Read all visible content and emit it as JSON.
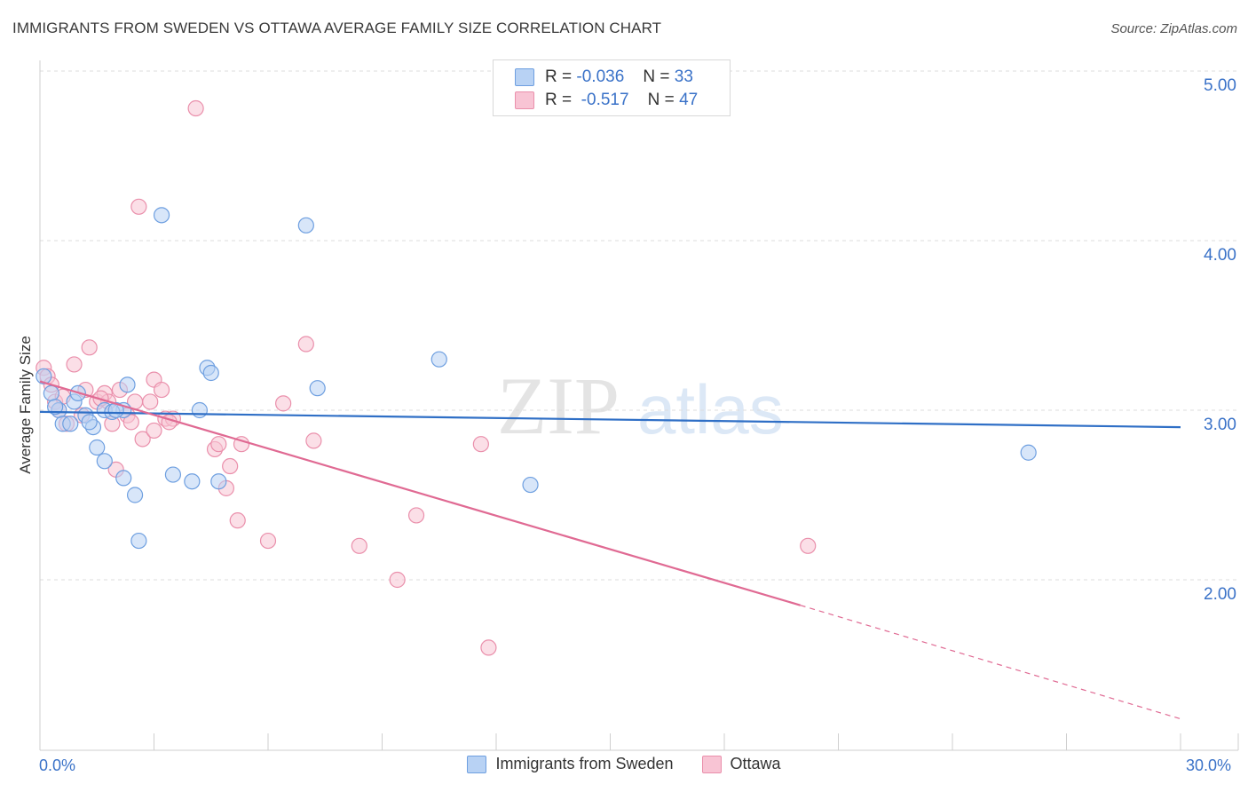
{
  "title": "IMMIGRANTS FROM SWEDEN VS OTTAWA AVERAGE FAMILY SIZE CORRELATION CHART",
  "source": "Source: ZipAtlas.com",
  "legend": {
    "r_label": "R =",
    "n_label": "N =",
    "sweden": {
      "r": "-0.036",
      "n": "33"
    },
    "ottawa": {
      "r": "-0.517",
      "n": "47"
    }
  },
  "colors": {
    "sweden_fill": "#b8d2f4",
    "sweden_stroke": "#6e9fe0",
    "sweden_line": "#2f6fc6",
    "ottawa_fill": "#f8c4d4",
    "ottawa_stroke": "#ea8fab",
    "ottawa_line": "#e06a93",
    "tick_label": "#3a72c8",
    "grid": "#dddddd"
  },
  "chart_data": {
    "type": "scatter",
    "ylabel": "Average Family Size",
    "xlim": [
      0,
      30
    ],
    "ylim": [
      1.0,
      5.1
    ],
    "x_tick_labels": [
      "0.0%",
      "30.0%"
    ],
    "y_ticks": [
      2.0,
      3.0,
      4.0,
      5.0
    ],
    "y_tick_labels": [
      "2.00",
      "3.00",
      "4.00",
      "5.00"
    ],
    "legend_placement": "top-center",
    "grid": "horizontal-dashed",
    "series": [
      {
        "name": "Immigrants from Sweden",
        "points": [
          [
            0.1,
            3.2
          ],
          [
            0.3,
            3.1
          ],
          [
            0.5,
            3.0
          ],
          [
            0.6,
            2.92
          ],
          [
            0.9,
            3.05
          ],
          [
            1.2,
            2.97
          ],
          [
            1.4,
            2.9
          ],
          [
            1.7,
            3.0
          ],
          [
            1.5,
            2.78
          ],
          [
            1.7,
            2.7
          ],
          [
            2.2,
            3.0
          ],
          [
            2.3,
            3.15
          ],
          [
            2.5,
            2.5
          ],
          [
            2.6,
            2.23
          ],
          [
            3.2,
            4.15
          ],
          [
            2.2,
            2.6
          ],
          [
            3.5,
            2.62
          ],
          [
            4.0,
            2.58
          ],
          [
            4.2,
            3.0
          ],
          [
            4.4,
            3.25
          ],
          [
            4.5,
            3.22
          ],
          [
            4.7,
            2.58
          ],
          [
            7.0,
            4.09
          ],
          [
            7.3,
            3.13
          ],
          [
            10.5,
            3.3
          ],
          [
            12.9,
            2.56
          ],
          [
            26.0,
            2.75
          ],
          [
            0.4,
            3.02
          ],
          [
            1.0,
            3.1
          ],
          [
            1.3,
            2.93
          ],
          [
            1.9,
            2.99
          ],
          [
            2.0,
            3.0
          ],
          [
            0.8,
            2.92
          ]
        ],
        "trend": [
          [
            0,
            2.99
          ],
          [
            30,
            2.9
          ]
        ]
      },
      {
        "name": "Ottawa",
        "points": [
          [
            0.1,
            3.25
          ],
          [
            0.2,
            3.2
          ],
          [
            0.4,
            3.05
          ],
          [
            0.5,
            3.0
          ],
          [
            0.7,
            2.92
          ],
          [
            0.9,
            3.27
          ],
          [
            1.2,
            3.12
          ],
          [
            1.3,
            3.37
          ],
          [
            1.5,
            3.05
          ],
          [
            1.7,
            3.1
          ],
          [
            1.9,
            2.92
          ],
          [
            2.0,
            2.65
          ],
          [
            2.1,
            3.12
          ],
          [
            2.3,
            2.97
          ],
          [
            2.5,
            3.05
          ],
          [
            2.6,
            4.2
          ],
          [
            2.7,
            2.83
          ],
          [
            3.0,
            2.88
          ],
          [
            3.0,
            3.18
          ],
          [
            3.2,
            3.12
          ],
          [
            3.3,
            2.95
          ],
          [
            3.5,
            2.95
          ],
          [
            4.1,
            4.78
          ],
          [
            4.6,
            2.77
          ],
          [
            4.7,
            2.8
          ],
          [
            4.9,
            2.54
          ],
          [
            5.0,
            2.67
          ],
          [
            5.2,
            2.35
          ],
          [
            5.3,
            2.8
          ],
          [
            6.0,
            2.23
          ],
          [
            6.4,
            3.04
          ],
          [
            7.0,
            3.39
          ],
          [
            7.2,
            2.82
          ],
          [
            8.4,
            2.2
          ],
          [
            9.4,
            2.0
          ],
          [
            9.9,
            2.38
          ],
          [
            11.6,
            2.8
          ],
          [
            11.8,
            1.6
          ],
          [
            20.2,
            2.2
          ],
          [
            0.6,
            3.08
          ],
          [
            1.1,
            2.97
          ],
          [
            1.8,
            3.05
          ],
          [
            2.4,
            2.93
          ],
          [
            2.9,
            3.05
          ],
          [
            3.4,
            2.93
          ],
          [
            1.6,
            3.07
          ],
          [
            0.3,
            3.15
          ]
        ],
        "trend": [
          [
            0,
            3.17
          ],
          [
            20,
            1.85
          ]
        ],
        "trend_extension": [
          [
            20,
            1.85
          ],
          [
            30,
            1.18
          ]
        ]
      }
    ]
  },
  "bottom_legend": [
    "Immigrants from Sweden",
    "Ottawa"
  ],
  "watermark": {
    "zip": "ZIP",
    "atlas": "atlas"
  }
}
